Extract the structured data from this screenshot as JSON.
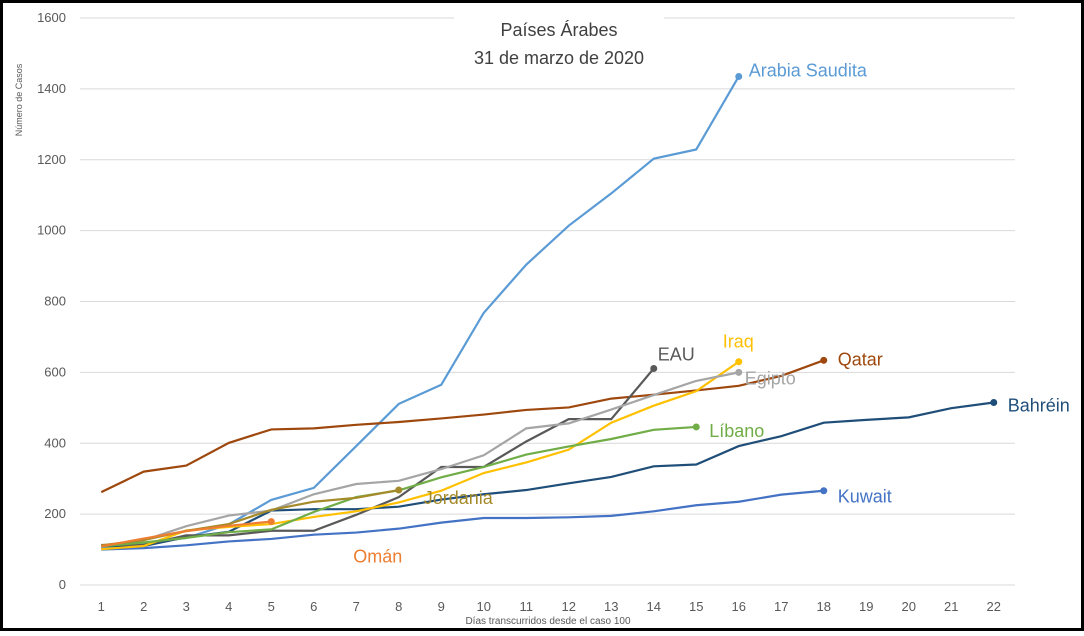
{
  "chart_data": {
    "type": "line",
    "title": [
      "Países Árabes",
      "31 de marzo de 2020"
    ],
    "ylabel": "Número de Casos",
    "xlabel": "Días transcurridos desde el caso 100",
    "x": [
      1,
      2,
      3,
      4,
      5,
      6,
      7,
      8,
      9,
      10,
      11,
      12,
      13,
      14,
      15,
      16,
      17,
      18,
      19,
      20,
      21,
      22
    ],
    "xlim": [
      0.5,
      22.5
    ],
    "xticks": [
      1,
      2,
      3,
      4,
      5,
      6,
      7,
      8,
      9,
      10,
      11,
      12,
      13,
      14,
      15,
      16,
      17,
      18,
      19,
      20,
      21,
      22
    ],
    "ylim": [
      0,
      1600
    ],
    "yticks": [
      0,
      200,
      400,
      600,
      800,
      1000,
      1200,
      1400,
      1600
    ],
    "grid": true,
    "series": [
      {
        "name": "Arabia Saudita",
        "color": "#5b9bd5",
        "values": [
          103,
          118,
          133,
          171,
          240,
          274,
          392,
          511,
          565,
          768,
          904,
          1014,
          1105,
          1203,
          1229,
          1435,
          null,
          null,
          null,
          null,
          null,
          null
        ]
      },
      {
        "name": "Bahréin",
        "color": "#1f4e79",
        "values": [
          110,
          110,
          135,
          150,
          210,
          214,
          214,
          221,
          241,
          256,
          268,
          287,
          305,
          335,
          340,
          392,
          420,
          458,
          466,
          473,
          499,
          515
        ]
      },
      {
        "name": "Kuwait",
        "color": "#4472c4",
        "values": [
          100,
          104,
          112,
          123,
          130,
          142,
          148,
          159,
          176,
          189,
          189,
          191,
          195,
          208,
          225,
          235,
          255,
          266,
          null,
          null,
          null,
          null
        ]
      },
      {
        "name": "Qatar",
        "color": "#9e480e",
        "values": [
          262,
          320,
          337,
          401,
          439,
          442,
          452,
          460,
          470,
          481,
          494,
          501,
          526,
          537,
          549,
          562,
          590,
          634,
          null,
          null,
          null,
          null
        ]
      },
      {
        "name": "EAU",
        "color": "#595959",
        "values": [
          113,
          113,
          140,
          140,
          153,
          153,
          198,
          248,
          333,
          333,
          405,
          468,
          468,
          611,
          null,
          null,
          null,
          null,
          null,
          null,
          null,
          null
        ]
      },
      {
        "name": "Iraq",
        "color": "#ffc000",
        "values": [
          101,
          110,
          154,
          164,
          172,
          192,
          208,
          233,
          266,
          316,
          346,
          382,
          458,
          506,
          547,
          630,
          null,
          null,
          null,
          null,
          null,
          null
        ]
      },
      {
        "name": "Egipto",
        "color": "#a5a5a5",
        "values": [
          110,
          126,
          166,
          196,
          210,
          256,
          285,
          294,
          327,
          366,
          442,
          456,
          495,
          536,
          576,
          600,
          null,
          null,
          null,
          null,
          null,
          null
        ]
      },
      {
        "name": "Líbano",
        "color": "#70ad47",
        "values": [
          109,
          120,
          133,
          149,
          157,
          206,
          248,
          267,
          304,
          333,
          368,
          391,
          412,
          438,
          446,
          null,
          null,
          null,
          null,
          null,
          null,
          null
        ]
      },
      {
        "name": "Jordania",
        "color": "#a58a2a",
        "values": [
          112,
          127,
          153,
          172,
          212,
          235,
          246,
          268,
          null,
          null,
          null,
          null,
          null,
          null,
          null,
          null,
          null,
          null,
          null,
          null,
          null,
          null
        ]
      },
      {
        "name": "Omán",
        "color": "#ed7d31",
        "values": [
          109,
          131,
          152,
          167,
          179,
          null,
          null,
          null,
          null,
          null,
          null,
          null,
          null,
          null,
          null,
          null,
          null,
          null,
          null,
          null,
          null,
          null
        ]
      }
    ]
  }
}
